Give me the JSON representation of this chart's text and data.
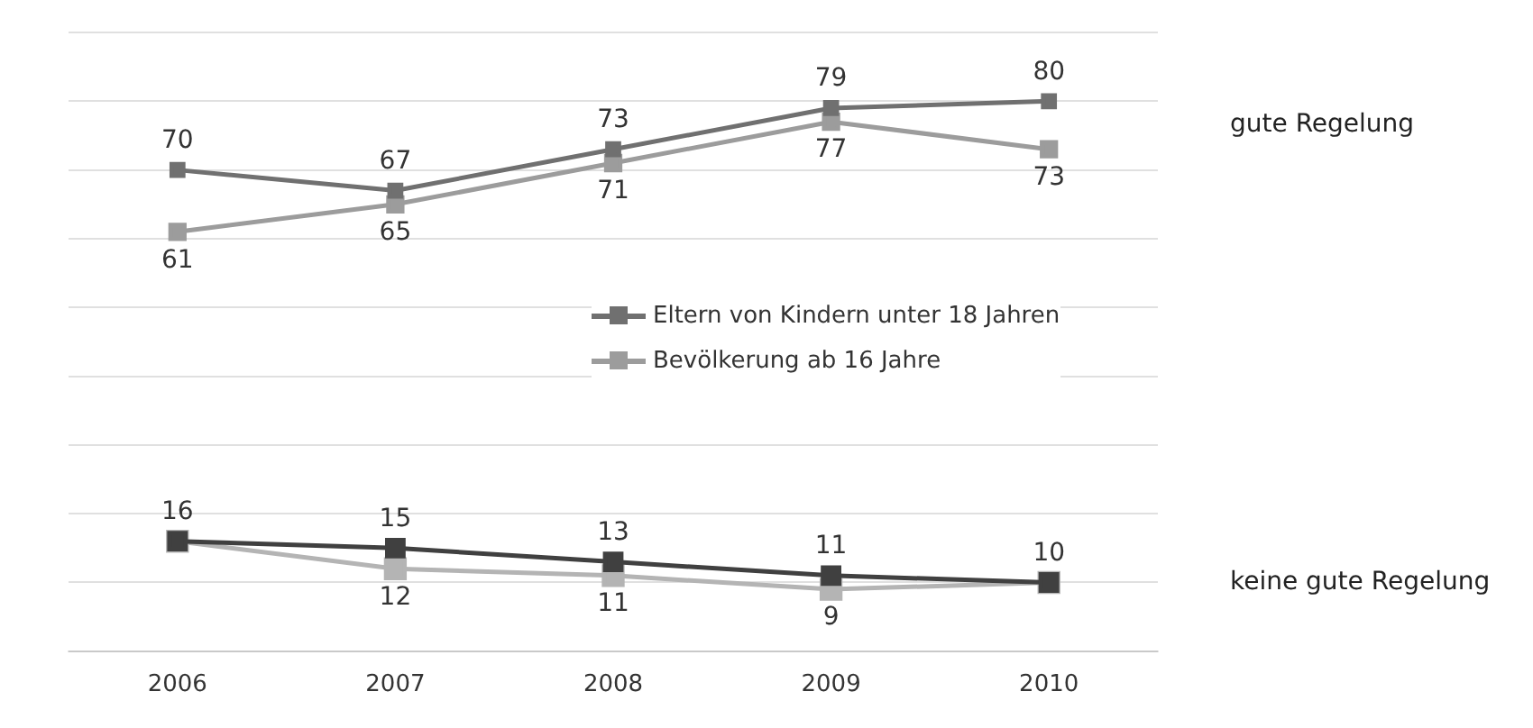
{
  "chart_data": {
    "type": "line",
    "categories": [
      "2006",
      "2007",
      "2008",
      "2009",
      "2010"
    ],
    "series": [
      {
        "name": "Eltern von Kindern unter 18 Jahren",
        "color": "#707070",
        "values": [
          70,
          67,
          73,
          79,
          80
        ],
        "value_labels": [
          "70",
          "67",
          "73",
          "79",
          "80"
        ]
      },
      {
        "name": "Bevölkerung ab 16 Jahre",
        "color": "#9c9c9c",
        "values": [
          61,
          65,
          71,
          77,
          73
        ],
        "value_labels": [
          "61",
          "65",
          "71",
          "77",
          "73"
        ]
      },
      {
        "color": "#404040",
        "values": [
          16,
          15,
          13,
          11,
          10
        ],
        "value_labels": [
          "16",
          "15",
          "13",
          "11",
          "10"
        ]
      },
      {
        "color": "#b4b4b4",
        "values": [
          16,
          12,
          11,
          9,
          10
        ],
        "value_labels": [
          null,
          "12",
          "11",
          "9",
          null
        ]
      }
    ],
    "ylim": [
      0,
      90
    ],
    "yticks": [
      {
        "value": 0,
        "label": null
      },
      {
        "value": 10,
        "label": null
      },
      {
        "value": 20,
        "label": null
      },
      {
        "value": 30,
        "label": null
      },
      {
        "value": 40,
        "label": null
      },
      {
        "value": 50,
        "label": null
      },
      {
        "value": 60,
        "label": null
      },
      {
        "value": 70,
        "label": null
      },
      {
        "value": 80,
        "label": null
      },
      {
        "value": 90,
        "label": null
      }
    ],
    "tick_labels": "x",
    "grid": "y",
    "marker": "square",
    "line_style": "solid",
    "legend": "center",
    "annotations": [
      "gute Regelung",
      "keine gute Regelung"
    ]
  }
}
